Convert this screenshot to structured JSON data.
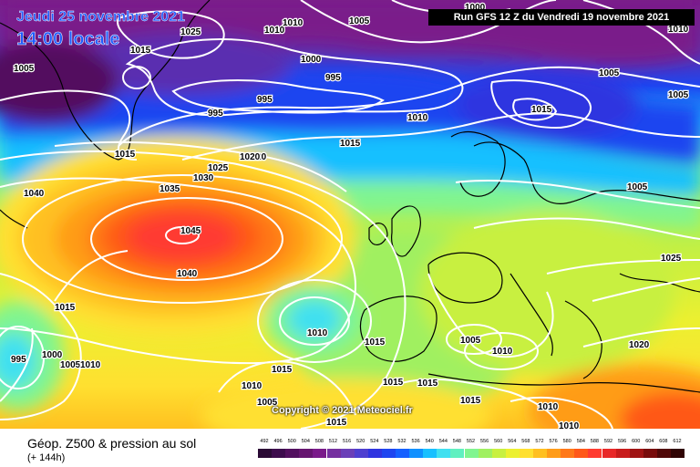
{
  "header": {
    "date": "Jeudi 25 novembre 2021",
    "time": "14:00 locale",
    "run": "Run GFS 12 Z du Vendredi 19 novembre 2021"
  },
  "footer": {
    "title": "Géop. Z500 & pression au sol",
    "lead": "(+ 144h)",
    "copyright": "Copyright © 2021 Meteociel.fr"
  },
  "map": {
    "field": "Z500",
    "centers": [
      {
        "kind": "high",
        "value": 1045
      },
      {
        "kind": "low",
        "value": 1010
      },
      {
        "kind": "low",
        "value": 995
      },
      {
        "kind": "low",
        "value": 1015
      }
    ],
    "isobar_labels": [
      "1010",
      "1005",
      "1025",
      "1020",
      "1010",
      "1005",
      "1015",
      "1000",
      "995",
      "995",
      "1010",
      "1005",
      "1005",
      "1015",
      "1015",
      "1015",
      "1020",
      "1025",
      "1030",
      "1035",
      "1040",
      "1045",
      "1040",
      "1005",
      "1025",
      "1015",
      "1010",
      "1015",
      "1005",
      "1010",
      "1020",
      "995",
      "1000",
      "1005",
      "1010",
      "1010",
      "1015",
      "1015",
      "1015",
      "1005",
      "1010",
      "1015",
      "1000",
      "1015",
      "1010",
      "1010",
      "995"
    ],
    "colors": {
      "land": "#000000",
      "isobar": "#ffffff",
      "deep_low": "#7a1a8a",
      "high_core": "#ff3b30"
    }
  },
  "legend": {
    "labels": [
      "492",
      "496",
      "500",
      "504",
      "508",
      "512",
      "516",
      "520",
      "524",
      "528",
      "532",
      "536",
      "540",
      "544",
      "548",
      "552",
      "556",
      "560",
      "564",
      "568",
      "572",
      "576",
      "580",
      "584",
      "588",
      "592",
      "596",
      "600",
      "604",
      "608",
      "612"
    ],
    "colors": [
      "#2a0a35",
      "#3d0c4d",
      "#52105f",
      "#661570",
      "#7a1a8a",
      "#7530a0",
      "#6a3fb8",
      "#4e3fd0",
      "#2f34e0",
      "#1e45f0",
      "#1560ff",
      "#1090ff",
      "#18c0ff",
      "#40e0f0",
      "#60f0c0",
      "#80f590",
      "#a0f060",
      "#c8f040",
      "#ecf030",
      "#ffe030",
      "#ffc020",
      "#ff9c18",
      "#ff7818",
      "#ff5818",
      "#ff3b30",
      "#e82828",
      "#c81c1c",
      "#a01414",
      "#780c0c",
      "#500808",
      "#300404"
    ]
  }
}
